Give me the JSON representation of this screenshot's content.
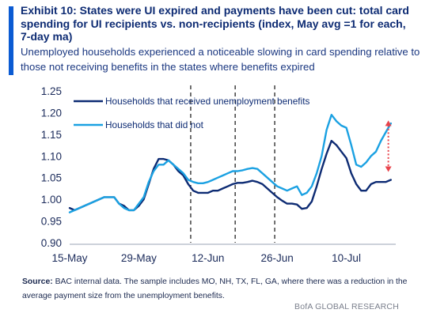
{
  "header": {
    "title": "Exhibit 10: States were UI expired and payments have been cut: total card spending for UI recipients vs. non-recipients (index, May avg =1 for each, 7-day ma)",
    "subtitle": "Unemployed households experienced a noticeable slowing in card spending relative to those not receiving benefits in the states where benefits expired"
  },
  "colors": {
    "accent": "#0b5bd3",
    "received_line": "#0d2b73",
    "not_received_line": "#1ba1e2",
    "arrow": "#e8434b"
  },
  "chart_data": {
    "type": "line",
    "x_ticks": [
      "15-May",
      "29-May",
      "12-Jun",
      "26-Jun",
      "10-Jul"
    ],
    "x_tick_days": [
      0,
      14,
      28,
      42,
      56
    ],
    "x_range": [
      0,
      66
    ],
    "ylim": [
      0.9,
      1.25
    ],
    "y_ticks": [
      "0.90",
      "0.95",
      "1.00",
      "1.05",
      "1.10",
      "1.15",
      "1.20",
      "1.25"
    ],
    "y_tick_values": [
      0.9,
      0.95,
      1.0,
      1.05,
      1.1,
      1.15,
      1.2,
      1.25
    ],
    "vertical_dashed_lines_at_days": [
      24.5,
      33.5,
      41.5
    ],
    "legend_placement": "top",
    "series": [
      {
        "name": "Households that received unemployment benefits",
        "color": "#0d2b73",
        "x": [
          0,
          1,
          2,
          3,
          4,
          5,
          6,
          7,
          8,
          9,
          10,
          11,
          12,
          13,
          14,
          15,
          16,
          17,
          18,
          19,
          20,
          21,
          22,
          23,
          24,
          25,
          26,
          27,
          28,
          29,
          30,
          31,
          32,
          33,
          34,
          35,
          36,
          37,
          38,
          39,
          40,
          41,
          42,
          43,
          44,
          45,
          46,
          47,
          48,
          49,
          50,
          51,
          52,
          53,
          54,
          55,
          56,
          57,
          58,
          59,
          60,
          61,
          62,
          63,
          64,
          65
        ],
        "values": [
          0.98,
          0.975,
          0.98,
          0.985,
          0.99,
          0.995,
          1.0,
          1.005,
          1.005,
          1.005,
          0.99,
          0.985,
          0.975,
          0.975,
          0.985,
          1.0,
          1.035,
          1.07,
          1.093,
          1.093,
          1.09,
          1.08,
          1.065,
          1.055,
          1.035,
          1.02,
          1.015,
          1.015,
          1.015,
          1.02,
          1.02,
          1.025,
          1.03,
          1.035,
          1.038,
          1.038,
          1.04,
          1.043,
          1.04,
          1.035,
          1.025,
          1.015,
          1.005,
          0.997,
          0.99,
          0.99,
          0.988,
          0.978,
          0.98,
          0.995,
          1.03,
          1.07,
          1.105,
          1.135,
          1.125,
          1.11,
          1.095,
          1.06,
          1.035,
          1.02,
          1.02,
          1.035,
          1.04,
          1.04,
          1.04,
          1.045
        ]
      },
      {
        "name": "Households that did not",
        "color": "#1ba1e2",
        "x": [
          0,
          1,
          2,
          3,
          4,
          5,
          6,
          7,
          8,
          9,
          10,
          11,
          12,
          13,
          14,
          15,
          16,
          17,
          18,
          19,
          20,
          21,
          22,
          23,
          24,
          25,
          26,
          27,
          28,
          29,
          30,
          31,
          32,
          33,
          34,
          35,
          36,
          37,
          38,
          39,
          40,
          41,
          42,
          43,
          44,
          45,
          46,
          47,
          48,
          49,
          50,
          51,
          52,
          53,
          54,
          55,
          56,
          57,
          58,
          59,
          60,
          61,
          62,
          63,
          64,
          65
        ],
        "values": [
          0.97,
          0.975,
          0.98,
          0.985,
          0.99,
          0.995,
          1.0,
          1.005,
          1.005,
          1.005,
          0.99,
          0.98,
          0.975,
          0.975,
          0.99,
          1.005,
          1.04,
          1.065,
          1.08,
          1.08,
          1.09,
          1.08,
          1.07,
          1.06,
          1.045,
          1.04,
          1.037,
          1.037,
          1.04,
          1.045,
          1.05,
          1.055,
          1.06,
          1.065,
          1.065,
          1.067,
          1.07,
          1.072,
          1.07,
          1.06,
          1.05,
          1.04,
          1.03,
          1.025,
          1.02,
          1.025,
          1.03,
          1.01,
          1.015,
          1.03,
          1.06,
          1.1,
          1.16,
          1.195,
          1.18,
          1.17,
          1.165,
          1.125,
          1.08,
          1.075,
          1.085,
          1.1,
          1.11,
          1.135,
          1.155,
          1.175
        ]
      }
    ],
    "annotation_arrow": {
      "day": 64.5,
      "y_start": 1.065,
      "y_end": 1.18
    }
  },
  "source": {
    "label": "Source:",
    "text": " BAC internal data. The sample includes  MO, NH, TX, FL, GA, where there was a reduction in the average payment size from the unemployment benefits."
  },
  "footer": {
    "text": "BofA GLOBAL RESEARCH"
  }
}
